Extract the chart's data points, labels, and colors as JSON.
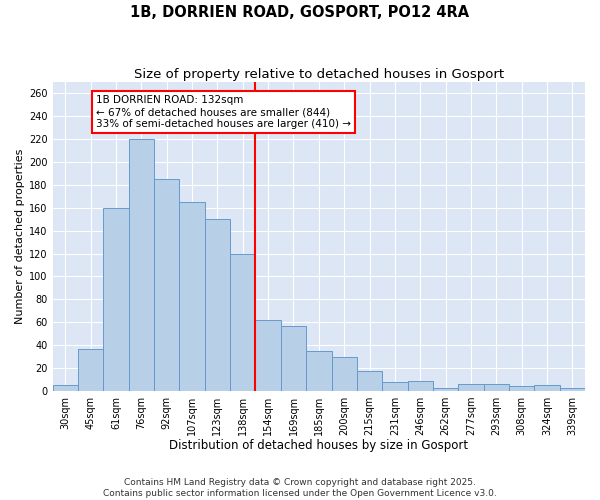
{
  "title": "1B, DORRIEN ROAD, GOSPORT, PO12 4RA",
  "subtitle": "Size of property relative to detached houses in Gosport",
  "xlabel": "Distribution of detached houses by size in Gosport",
  "ylabel": "Number of detached properties",
  "categories": [
    "30sqm",
    "45sqm",
    "61sqm",
    "76sqm",
    "92sqm",
    "107sqm",
    "123sqm",
    "138sqm",
    "154sqm",
    "169sqm",
    "185sqm",
    "200sqm",
    "215sqm",
    "231sqm",
    "246sqm",
    "262sqm",
    "277sqm",
    "293sqm",
    "308sqm",
    "324sqm",
    "339sqm"
  ],
  "values": [
    5,
    37,
    160,
    220,
    185,
    165,
    150,
    120,
    62,
    57,
    35,
    30,
    17,
    8,
    9,
    3,
    6,
    6,
    4,
    5,
    3
  ],
  "bar_color": "#b8cfe8",
  "bar_edge_color": "#6699cc",
  "vline_color": "red",
  "annotation_text": "1B DORRIEN ROAD: 132sqm\n← 67% of detached houses are smaller (844)\n33% of semi-detached houses are larger (410) →",
  "annotation_box_color": "white",
  "annotation_box_edge_color": "red",
  "ylim": [
    0,
    270
  ],
  "yticks": [
    0,
    20,
    40,
    60,
    80,
    100,
    120,
    140,
    160,
    180,
    200,
    220,
    240,
    260
  ],
  "background_color": "#dce6f5",
  "grid_color": "white",
  "footer": "Contains HM Land Registry data © Crown copyright and database right 2025.\nContains public sector information licensed under the Open Government Licence v3.0.",
  "title_fontsize": 10.5,
  "subtitle_fontsize": 9.5,
  "xlabel_fontsize": 8.5,
  "ylabel_fontsize": 8,
  "tick_fontsize": 7,
  "annotation_fontsize": 7.5,
  "footer_fontsize": 6.5
}
